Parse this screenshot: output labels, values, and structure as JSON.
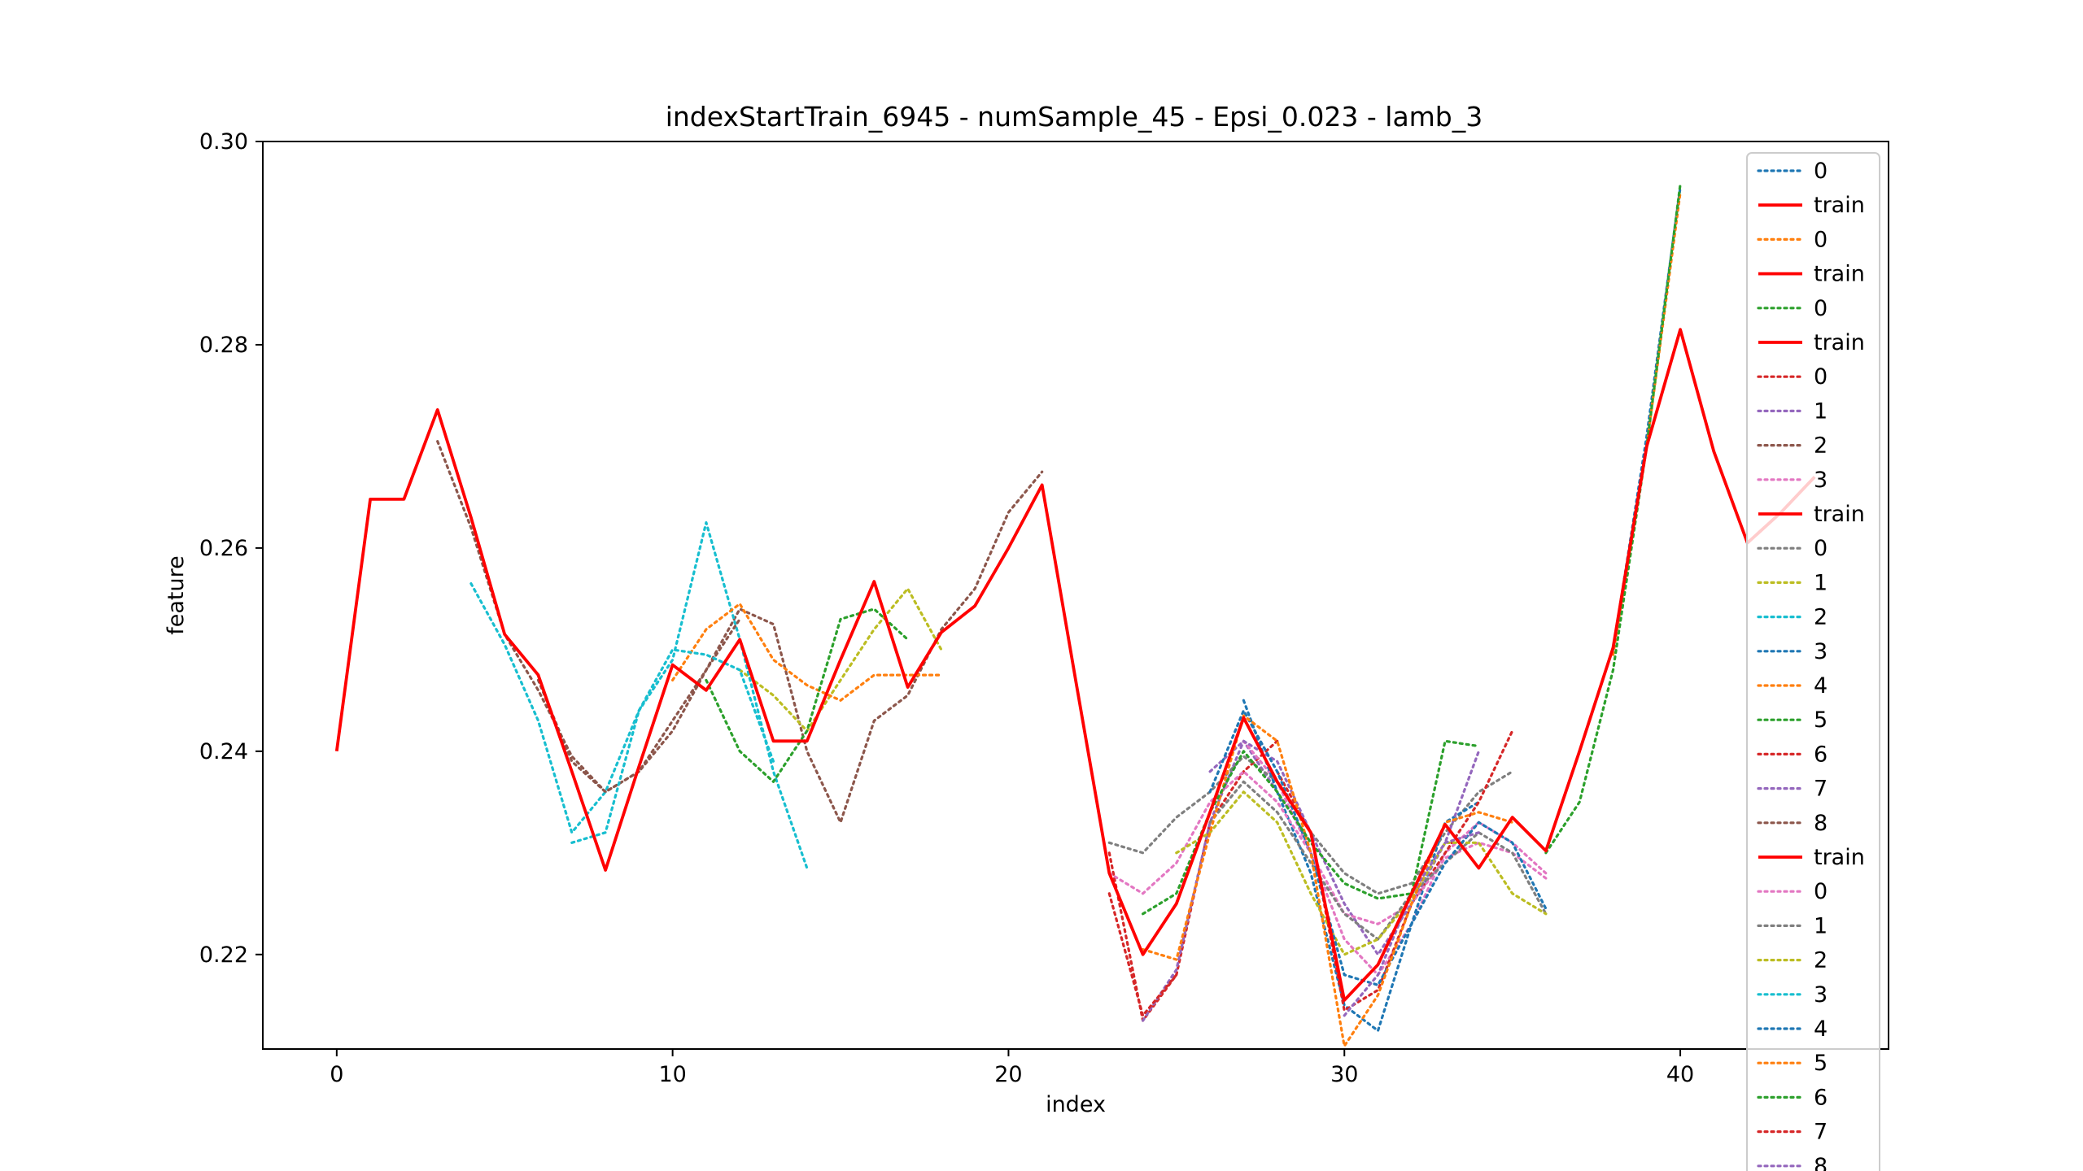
{
  "chart_data": {
    "type": "line",
    "title": "indexStartTrain_6945 - numSample_45 - Epsi_0.023 - lamb_3",
    "xlabel": "index",
    "ylabel": "feature",
    "xlim": [
      -2.2,
      46.2
    ],
    "ylim": [
      0.2107,
      0.3
    ],
    "xticks": [
      0,
      10,
      20,
      30,
      40
    ],
    "yticks": [
      0.22,
      0.24,
      0.26,
      0.28,
      0.3
    ],
    "ytick_labels": [
      "0.22",
      "0.24",
      "0.26",
      "0.28",
      "0.30"
    ],
    "grid": false,
    "legend_position": "right",
    "train": {
      "name": "train",
      "color": "#ff0000",
      "x": [
        0,
        1,
        2,
        3,
        4,
        5,
        6,
        7,
        8,
        9,
        10,
        11,
        12,
        13,
        14,
        15,
        16,
        17,
        18,
        19,
        20,
        21,
        22,
        23,
        24,
        25,
        26,
        27,
        28,
        29,
        30,
        31,
        32,
        33,
        34,
        35,
        36,
        37,
        38,
        39,
        40,
        41,
        42,
        43,
        44
      ],
      "y": [
        0.24,
        0.2648,
        0.2648,
        0.2736,
        0.263,
        0.2515,
        0.2475,
        0.238,
        0.2283,
        0.2385,
        0.2485,
        0.246,
        0.251,
        0.241,
        0.241,
        0.249,
        0.2567,
        0.2463,
        0.2517,
        0.2543,
        0.26,
        0.2662,
        0.247,
        0.228,
        0.22,
        0.225,
        0.234,
        0.2433,
        0.237,
        0.232,
        0.2155,
        0.219,
        0.226,
        0.2328,
        0.2285,
        0.2335,
        0.2302,
        0.24,
        0.2502,
        0.27,
        0.2815,
        0.2695,
        0.2605,
        0.2635,
        0.267
      ]
    },
    "predictions": [
      {
        "name": "0",
        "color": "#1f77b4",
        "x": [
          38,
          39,
          40
        ],
        "y": [
          0.25,
          0.271,
          0.2955
        ]
      },
      {
        "name": "0",
        "color": "#ff7f0e",
        "x": [
          38,
          39,
          40
        ],
        "y": [
          0.2495,
          0.27,
          0.295
        ]
      },
      {
        "name": "0",
        "color": "#2ca02c",
        "x": [
          36,
          37,
          38,
          39,
          40
        ],
        "y": [
          0.23,
          0.235,
          0.248,
          0.27,
          0.2958
        ]
      },
      {
        "name": "0",
        "color": "#d62728",
        "x": [
          23,
          24,
          25,
          26,
          27,
          28
        ],
        "y": [
          0.23,
          0.2135,
          0.218,
          0.233,
          0.238,
          0.241
        ]
      },
      {
        "name": "1",
        "color": "#9467bd",
        "x": [
          24,
          25,
          26,
          27,
          28,
          29
        ],
        "y": [
          0.2135,
          0.2185,
          0.233,
          0.241,
          0.236,
          0.231
        ]
      },
      {
        "name": "2",
        "color": "#8c564b",
        "x": [
          3,
          4,
          5,
          6,
          7,
          8,
          9,
          10,
          11,
          12,
          13,
          14,
          15,
          16,
          17,
          18,
          19,
          20,
          21
        ],
        "y": [
          0.2705,
          0.262,
          0.2515,
          0.246,
          0.2395,
          0.236,
          0.238,
          0.243,
          0.248,
          0.254,
          0.2525,
          0.24,
          0.233,
          0.243,
          0.2455,
          0.252,
          0.256,
          0.2635,
          0.2675
        ]
      },
      {
        "name": "3",
        "color": "#e377c2",
        "x": [
          27,
          28,
          29,
          30,
          31,
          32,
          33,
          34,
          35,
          36
        ],
        "y": [
          0.241,
          0.237,
          0.23,
          0.2215,
          0.218,
          0.223,
          0.23,
          0.233,
          0.231,
          0.228
        ]
      },
      {
        "name": "0",
        "color": "#7f7f7f",
        "x": [
          23,
          24,
          25,
          26,
          27,
          28,
          29,
          30,
          31,
          32,
          33,
          34,
          35
        ],
        "y": [
          0.231,
          0.23,
          0.2335,
          0.236,
          0.2395,
          0.237,
          0.232,
          0.228,
          0.226,
          0.227,
          0.232,
          0.236,
          0.238
        ]
      },
      {
        "name": "1",
        "color": "#bcbd22",
        "x": [
          12,
          13,
          14,
          15,
          16,
          17,
          18
        ],
        "y": [
          0.248,
          0.2455,
          0.242,
          0.247,
          0.252,
          0.256,
          0.25
        ]
      },
      {
        "name": "2",
        "color": "#17becf",
        "x": [
          4,
          5,
          6,
          7,
          8,
          9,
          10,
          11,
          12,
          13,
          14
        ],
        "y": [
          0.2565,
          0.2505,
          0.243,
          0.232,
          0.236,
          0.244,
          0.249,
          0.2625,
          0.251,
          0.238,
          0.2285
        ]
      },
      {
        "name": "3",
        "color": "#1f77b4",
        "x": [
          27,
          28,
          29,
          30,
          31,
          32,
          33,
          34
        ],
        "y": [
          0.245,
          0.236,
          0.228,
          0.215,
          0.2125,
          0.223,
          0.233,
          0.235
        ]
      },
      {
        "name": "4",
        "color": "#ff7f0e",
        "x": [
          10,
          11,
          12,
          13,
          14,
          15,
          16,
          17,
          18
        ],
        "y": [
          0.247,
          0.252,
          0.2545,
          0.249,
          0.2465,
          0.245,
          0.2475,
          0.2475,
          0.2475
        ]
      },
      {
        "name": "5",
        "color": "#2ca02c",
        "x": [
          11,
          12,
          13,
          14,
          15,
          16,
          17
        ],
        "y": [
          0.247,
          0.24,
          0.237,
          0.242,
          0.253,
          0.254,
          0.251
        ]
      },
      {
        "name": "6",
        "color": "#d62728",
        "x": [
          28,
          29,
          30,
          31,
          32,
          33,
          34,
          35
        ],
        "y": [
          0.238,
          0.232,
          0.2145,
          0.2165,
          0.225,
          0.23,
          0.235,
          0.242
        ]
      },
      {
        "name": "7",
        "color": "#9467bd",
        "x": [
          26,
          27,
          28,
          29,
          30,
          31,
          32,
          33,
          34
        ],
        "y": [
          0.238,
          0.241,
          0.239,
          0.232,
          0.225,
          0.22,
          0.225,
          0.231,
          0.24
        ]
      },
      {
        "name": "8",
        "color": "#8c564b",
        "x": [
          6,
          7,
          8,
          9,
          10,
          11,
          12
        ],
        "y": [
          0.247,
          0.239,
          0.236,
          0.238,
          0.242,
          0.248,
          0.253
        ]
      },
      {
        "name": "0",
        "color": "#e377c2",
        "x": [
          23,
          24,
          25,
          26,
          27,
          28,
          29,
          30,
          31,
          32,
          33,
          34,
          35,
          36
        ],
        "y": [
          0.228,
          0.226,
          0.229,
          0.235,
          0.238,
          0.235,
          0.23,
          0.224,
          0.223,
          0.225,
          0.2295,
          0.231,
          0.23,
          0.2275
        ]
      },
      {
        "name": "1",
        "color": "#7f7f7f",
        "x": [
          26,
          27,
          28,
          29,
          30,
          31,
          32,
          33,
          34,
          35,
          36
        ],
        "y": [
          0.233,
          0.237,
          0.234,
          0.229,
          0.224,
          0.2215,
          0.226,
          0.229,
          0.232,
          0.23,
          0.224
        ]
      },
      {
        "name": "2",
        "color": "#bcbd22",
        "x": [
          25,
          26,
          27,
          28,
          29,
          30,
          31,
          32,
          33,
          34,
          35,
          36
        ],
        "y": [
          0.23,
          0.232,
          0.236,
          0.233,
          0.226,
          0.22,
          0.2215,
          0.2255,
          0.231,
          0.231,
          0.226,
          0.224
        ]
      },
      {
        "name": "3",
        "color": "#17becf",
        "x": [
          7,
          8,
          9,
          10,
          11,
          12,
          13
        ],
        "y": [
          0.231,
          0.232,
          0.244,
          0.25,
          0.2495,
          0.248,
          0.239
        ]
      },
      {
        "name": "4",
        "color": "#1f77b4",
        "x": [
          26,
          27,
          28,
          29,
          30,
          31,
          32,
          33,
          34,
          35,
          36
        ],
        "y": [
          0.236,
          0.244,
          0.238,
          0.23,
          0.218,
          0.217,
          0.223,
          0.229,
          0.233,
          0.231,
          0.2245
        ]
      },
      {
        "name": "5",
        "color": "#ff7f0e",
        "x": [
          24,
          25,
          26,
          27,
          28,
          29,
          30,
          31,
          32,
          33,
          34,
          35
        ],
        "y": [
          0.2205,
          0.2195,
          0.232,
          0.2435,
          0.241,
          0.23,
          0.211,
          0.216,
          0.225,
          0.233,
          0.234,
          0.233
        ]
      },
      {
        "name": "6",
        "color": "#2ca02c",
        "x": [
          24,
          25,
          26,
          27,
          28,
          29,
          30,
          31,
          32,
          33,
          34
        ],
        "y": [
          0.224,
          0.226,
          0.234,
          0.24,
          0.236,
          0.231,
          0.227,
          0.2255,
          0.226,
          0.241,
          0.2405
        ]
      },
      {
        "name": "7",
        "color": "#d62728",
        "x": [
          23,
          24,
          25
        ],
        "y": [
          0.226,
          0.214,
          0.218
        ]
      },
      {
        "name": "8",
        "color": "#9467bd",
        "x": [
          30,
          31,
          32,
          33,
          34
        ],
        "y": [
          0.214,
          0.218,
          0.226,
          0.231,
          0.232
        ]
      }
    ],
    "legend": [
      {
        "label": "0",
        "style": "dotted",
        "color": "#1f77b4"
      },
      {
        "label": "train",
        "style": "solid",
        "color": "#ff0000"
      },
      {
        "label": "0",
        "style": "dotted",
        "color": "#ff7f0e"
      },
      {
        "label": "train",
        "style": "solid",
        "color": "#ff0000"
      },
      {
        "label": "0",
        "style": "dotted",
        "color": "#2ca02c"
      },
      {
        "label": "train",
        "style": "solid",
        "color": "#ff0000"
      },
      {
        "label": "0",
        "style": "dotted",
        "color": "#d62728"
      },
      {
        "label": "1",
        "style": "dotted",
        "color": "#9467bd"
      },
      {
        "label": "2",
        "style": "dotted",
        "color": "#8c564b"
      },
      {
        "label": "3",
        "style": "dotted",
        "color": "#e377c2"
      },
      {
        "label": "train",
        "style": "solid",
        "color": "#ff0000"
      },
      {
        "label": "0",
        "style": "dotted",
        "color": "#7f7f7f"
      },
      {
        "label": "1",
        "style": "dotted",
        "color": "#bcbd22"
      },
      {
        "label": "2",
        "style": "dotted",
        "color": "#17becf"
      },
      {
        "label": "3",
        "style": "dotted",
        "color": "#1f77b4"
      },
      {
        "label": "4",
        "style": "dotted",
        "color": "#ff7f0e"
      },
      {
        "label": "5",
        "style": "dotted",
        "color": "#2ca02c"
      },
      {
        "label": "6",
        "style": "dotted",
        "color": "#d62728"
      },
      {
        "label": "7",
        "style": "dotted",
        "color": "#9467bd"
      },
      {
        "label": "8",
        "style": "dotted",
        "color": "#8c564b"
      },
      {
        "label": "train",
        "style": "solid",
        "color": "#ff0000"
      },
      {
        "label": "0",
        "style": "dotted",
        "color": "#e377c2"
      },
      {
        "label": "1",
        "style": "dotted",
        "color": "#7f7f7f"
      },
      {
        "label": "2",
        "style": "dotted",
        "color": "#bcbd22"
      },
      {
        "label": "3",
        "style": "dotted",
        "color": "#17becf"
      },
      {
        "label": "4",
        "style": "dotted",
        "color": "#1f77b4"
      },
      {
        "label": "5",
        "style": "dotted",
        "color": "#ff7f0e"
      },
      {
        "label": "6",
        "style": "dotted",
        "color": "#2ca02c"
      },
      {
        "label": "7",
        "style": "dotted",
        "color": "#d62728"
      },
      {
        "label": "8",
        "style": "dotted",
        "color": "#9467bd"
      }
    ]
  }
}
